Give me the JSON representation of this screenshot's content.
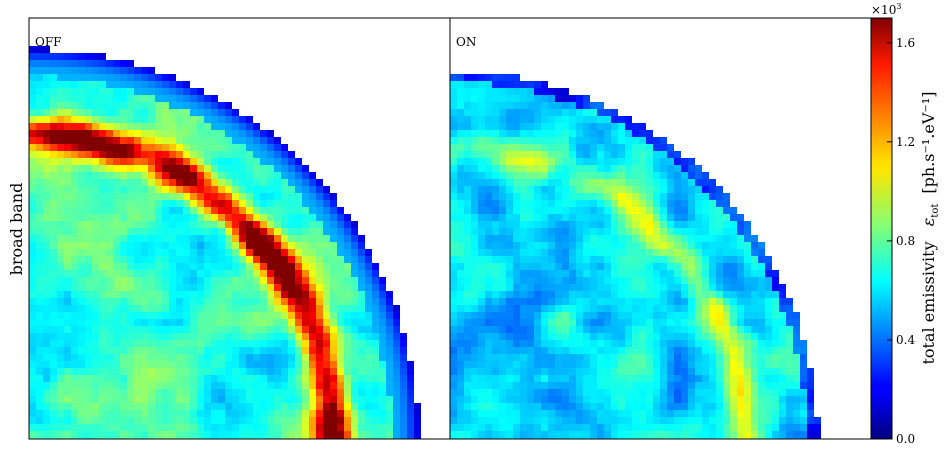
{
  "chart_data": {
    "type": "heatmap",
    "row_label": "broad band",
    "panels": [
      {
        "label": "OFF",
        "ring_strength": 1.0,
        "base_level": 0.42
      },
      {
        "label": "ON",
        "ring_strength": 0.35,
        "base_level": 0.3
      }
    ],
    "colorbar": {
      "label": "total emissivity",
      "symbol": "ε",
      "symbol_sub": "tot",
      "units": "[ph.s⁻¹.eV⁻¹]",
      "scale_note": "×10",
      "scale_exp": "3",
      "range": [
        0.0,
        1.7
      ],
      "ticks": [
        {
          "value": 0.0,
          "label": "0.0"
        },
        {
          "value": 0.4,
          "label": "0.4"
        },
        {
          "value": 0.8,
          "label": "0.8"
        },
        {
          "value": 1.2,
          "label": "1.2"
        },
        {
          "value": 1.6,
          "label": "1.6"
        }
      ],
      "colormap": "jet"
    }
  }
}
